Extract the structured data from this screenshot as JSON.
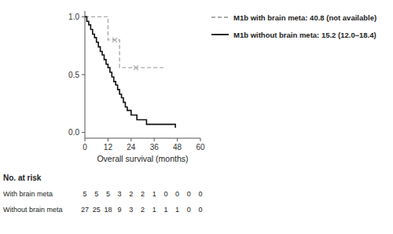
{
  "chart_data": {
    "type": "step",
    "x_label": "Overall survival (months)",
    "xlim": [
      0,
      60
    ],
    "ylim": [
      -0.05,
      1.05
    ],
    "xticks": [
      0,
      12,
      24,
      36,
      48,
      60
    ],
    "yticks": [
      {
        "value": 0.0,
        "label": "0.0"
      },
      0.5,
      {
        "value": 1.0,
        "label": "1.0"
      }
    ],
    "legend": "right",
    "grid": false,
    "series": [
      {
        "name": "M1b with brain meta: 40.8 (not available)",
        "color": "#aaaaaa",
        "line_style": "dashed",
        "x": [
          0,
          12,
          12,
          18,
          18,
          40.8
        ],
        "values": [
          1.0,
          1.0,
          0.8,
          0.8,
          0.56,
          0.56
        ],
        "censors": {
          "x": [
            15.5,
            26.5
          ],
          "values": [
            0.8,
            0.56
          ]
        }
      },
      {
        "name": "M1b without brain meta: 15.2 (12.0–18.4)",
        "color": "#111111",
        "line_style": "solid",
        "x": [
          0,
          1,
          2,
          3,
          4,
          5,
          6,
          7,
          8,
          9,
          10,
          11,
          12,
          13,
          14,
          15,
          16,
          17,
          18,
          19,
          20,
          21,
          22,
          23,
          24,
          25,
          26,
          27,
          28,
          29,
          30,
          32,
          33,
          36,
          44,
          47
        ],
        "values": [
          1.0,
          0.96,
          0.93,
          0.89,
          0.85,
          0.82,
          0.78,
          0.74,
          0.7,
          0.67,
          0.63,
          0.59,
          0.56,
          0.52,
          0.48,
          0.44,
          0.41,
          0.37,
          0.33,
          0.3,
          0.26,
          0.22,
          0.19,
          0.19,
          0.15,
          0.15,
          0.15,
          0.11,
          0.11,
          0.11,
          0.11,
          0.07,
          0.07,
          0.07,
          0.07,
          0.04
        ]
      }
    ],
    "risk_table": {
      "title": "No. at risk",
      "x": [
        0,
        6,
        12,
        18,
        24,
        30,
        36,
        42,
        48,
        54,
        60
      ],
      "rows": [
        {
          "label": "With brain meta",
          "values": [
            5,
            5,
            5,
            3,
            2,
            2,
            1,
            0,
            0,
            0,
            0
          ]
        },
        {
          "label": "Without brain meta",
          "values": [
            27,
            25,
            18,
            9,
            3,
            2,
            1,
            1,
            1,
            0,
            0
          ]
        }
      ]
    }
  }
}
